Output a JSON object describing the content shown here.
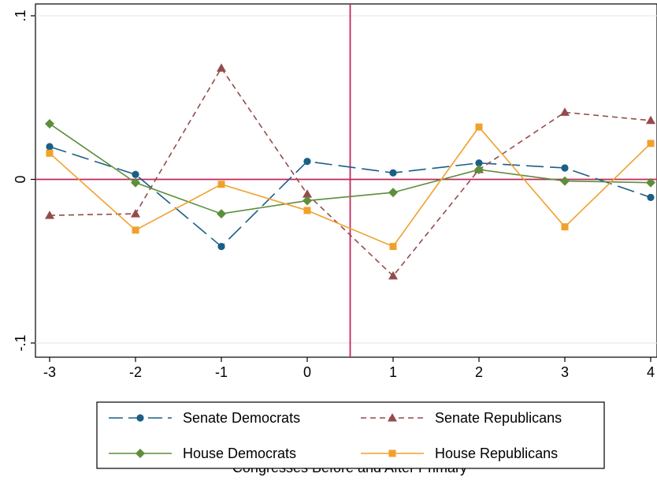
{
  "chart_data": {
    "type": "line",
    "title": "",
    "xlabel": "Congresses Before and After Primary",
    "ylabel": "",
    "x": [
      -3,
      -2,
      -1,
      0,
      1,
      2,
      3,
      4
    ],
    "xtick_labels": [
      "-3",
      "-2",
      "-1",
      "0",
      "1",
      "2",
      "3",
      "4"
    ],
    "xlim": [
      -3,
      4
    ],
    "ylim": [
      -0.1,
      0.1
    ],
    "ytick_labels": [
      {
        "value": 0.1,
        "label": ".1"
      },
      {
        "value": 0,
        "label": "0"
      },
      {
        "value": -0.1,
        "label": "-.1"
      }
    ],
    "reference_lines": {
      "x": 0.5,
      "y": 0,
      "color": "#c0275c"
    },
    "grid": "horizontal",
    "legend_position": "bottom",
    "series": [
      {
        "name": "Senate Democrats",
        "color": "#1a5f86",
        "marker": "circle",
        "dash": "long-dash",
        "values": [
          0.02,
          0.003,
          -0.041,
          0.011,
          0.004,
          0.01,
          0.007,
          -0.011
        ]
      },
      {
        "name": "Senate Republicans",
        "color": "#944c4a",
        "marker": "triangle",
        "dash": "short-dash",
        "values": [
          -0.022,
          -0.021,
          0.068,
          -0.009,
          -0.059,
          0.006,
          0.041,
          0.036
        ]
      },
      {
        "name": "House Democrats",
        "color": "#5d8e3a",
        "marker": "diamond",
        "dash": "solid",
        "values": [
          0.034,
          -0.002,
          -0.021,
          -0.013,
          -0.008,
          0.006,
          -0.001,
          -0.002
        ]
      },
      {
        "name": "House Republicans",
        "color": "#f0a12c",
        "marker": "square",
        "dash": "solid",
        "values": [
          0.016,
          -0.031,
          -0.003,
          -0.019,
          -0.041,
          0.032,
          -0.029,
          0.022
        ]
      }
    ]
  }
}
